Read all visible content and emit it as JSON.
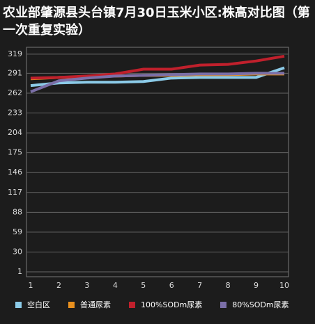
{
  "chart_data": {
    "type": "line",
    "title": "农业部肇源县头台镇7月30日玉米小区:株高对比图（第一次重复实验）",
    "x": [
      1,
      2,
      3,
      4,
      5,
      6,
      7,
      8,
      9,
      10
    ],
    "xlim": [
      1,
      10
    ],
    "ylim": [
      1,
      329
    ],
    "yticks": [
      1,
      30,
      59,
      88,
      117,
      146,
      175,
      204,
      233,
      262,
      291,
      319
    ],
    "grid": true,
    "series": [
      {
        "name": "空白区",
        "color": "#8ccbe8",
        "values": [
          273,
          277,
          278,
          278,
          279,
          284,
          285,
          285,
          285,
          299
        ]
      },
      {
        "name": "普通尿素",
        "color": "#e8901e",
        "values": [
          283,
          285,
          286,
          287,
          288,
          288,
          289,
          289,
          290,
          290
        ]
      },
      {
        "name": "100%SODm尿素",
        "color": "#c0202c",
        "values": [
          284,
          285,
          287,
          290,
          297,
          297,
          303,
          304,
          309,
          316
        ]
      },
      {
        "name": "80%SODm尿素",
        "color": "#7b6fa8",
        "values": [
          264,
          280,
          284,
          287,
          288,
          289,
          290,
          290,
          291,
          291
        ]
      }
    ]
  }
}
